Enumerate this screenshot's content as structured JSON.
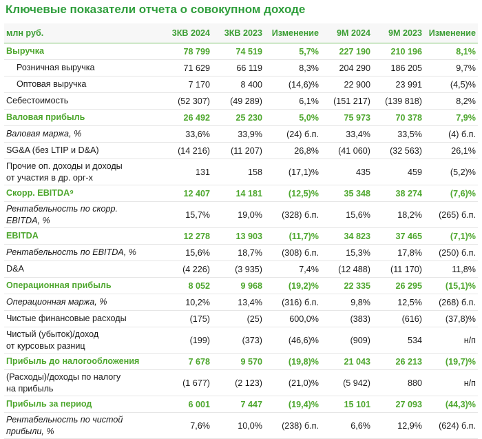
{
  "header": {
    "title": "Ключевые показатели отчета о совокупном доходе"
  },
  "table": {
    "columns": [
      "млн руб.",
      "3КВ 2024",
      "3КВ 2023",
      "Изменение",
      "9М 2024",
      "9М 2023",
      "Изменение"
    ],
    "rows": [
      [
        "Выручка",
        "78 799",
        "74 519",
        "5,7%",
        "227 190",
        "210 196",
        "8,1%"
      ],
      [
        "Розничная выручка",
        "71 629",
        "66 119",
        "8,3%",
        "204 290",
        "186 205",
        "9,7%"
      ],
      [
        "Оптовая выручка",
        "7 170",
        "8 400",
        "(14,6)%",
        "22 900",
        "23 991",
        "(4,5)%"
      ],
      [
        "Себестоимость",
        "(52 307)",
        "(49 289)",
        "6,1%",
        "(151 217)",
        "(139 818)",
        "8,2%"
      ],
      [
        "Валовая прибыль",
        "26 492",
        "25 230",
        "5,0%",
        "75 973",
        "70 378",
        "7,9%"
      ],
      [
        "Валовая маржа, %",
        "33,6%",
        "33,9%",
        "(24) б.п.",
        "33,4%",
        "33,5%",
        "(4) б.п."
      ],
      [
        "SG&A (без LTIP и D&A)",
        "(14 216)",
        "(11 207)",
        "26,8%",
        "(41 060)",
        "(32 563)",
        "26,1%"
      ],
      [
        "Прочие оп. доходы и доходы\nот участия в др. орг-х",
        "131",
        "158",
        "(17,1)%",
        "435",
        "459",
        "(5,2)%"
      ],
      [
        "Скорр. EBITDA⁹",
        "12 407",
        "14 181",
        "(12,5)%",
        "35 348",
        "38 274",
        "(7,6)%"
      ],
      [
        "Рентабельность по скорр.\nEBITDA, %",
        "15,7%",
        "19,0%",
        "(328) б.п.",
        "15,6%",
        "18,2%",
        "(265) б.п."
      ],
      [
        "EBITDA",
        "12 278",
        "13 903",
        "(11,7)%",
        "34 823",
        "37 465",
        "(7,1)%"
      ],
      [
        "Рентабельность по EBITDA, %",
        "15,6%",
        "18,7%",
        "(308) б.п.",
        "15,3%",
        "17,8%",
        "(250) б.п."
      ],
      [
        "D&A",
        "(4 226)",
        "(3 935)",
        "7,4%",
        "(12 488)",
        "(11 170)",
        "11,8%"
      ],
      [
        "Операционная прибыль",
        "8 052",
        "9 968",
        "(19,2)%",
        "22 335",
        "26 295",
        "(15,1)%"
      ],
      [
        "Операционная маржа, %",
        "10,2%",
        "13,4%",
        "(316) б.п.",
        "9,8%",
        "12,5%",
        "(268) б.п."
      ],
      [
        "Чистые финансовые расходы",
        "(175)",
        "(25)",
        "600,0%",
        "(383)",
        "(616)",
        "(37,8)%"
      ],
      [
        "Чистый (убыток)/доход\nот курсовых разниц",
        "(199)",
        "(373)",
        "(46,6)%",
        "(909)",
        "534",
        "н/п"
      ],
      [
        "Прибыль до налогообложения",
        "7 678",
        "9 570",
        "(19,8)%",
        "21 043",
        "26 213",
        "(19,7)%"
      ],
      [
        "(Расходы)/доходы по налогу\nна прибыль",
        "(1 677)",
        "(2 123)",
        "(21,0)%",
        "(5 942)",
        "880",
        "н/п"
      ],
      [
        "Прибыль за период",
        "6 001",
        "7 447",
        "(19,4)%",
        "15 101",
        "27 093",
        "(44,3)%"
      ],
      [
        "Рентабельность по чистой\nприбыли, %",
        "7,6%",
        "10,0%",
        "(238) б.п.",
        "6,6%",
        "12,9%",
        "(624) б.п."
      ]
    ]
  }
}
